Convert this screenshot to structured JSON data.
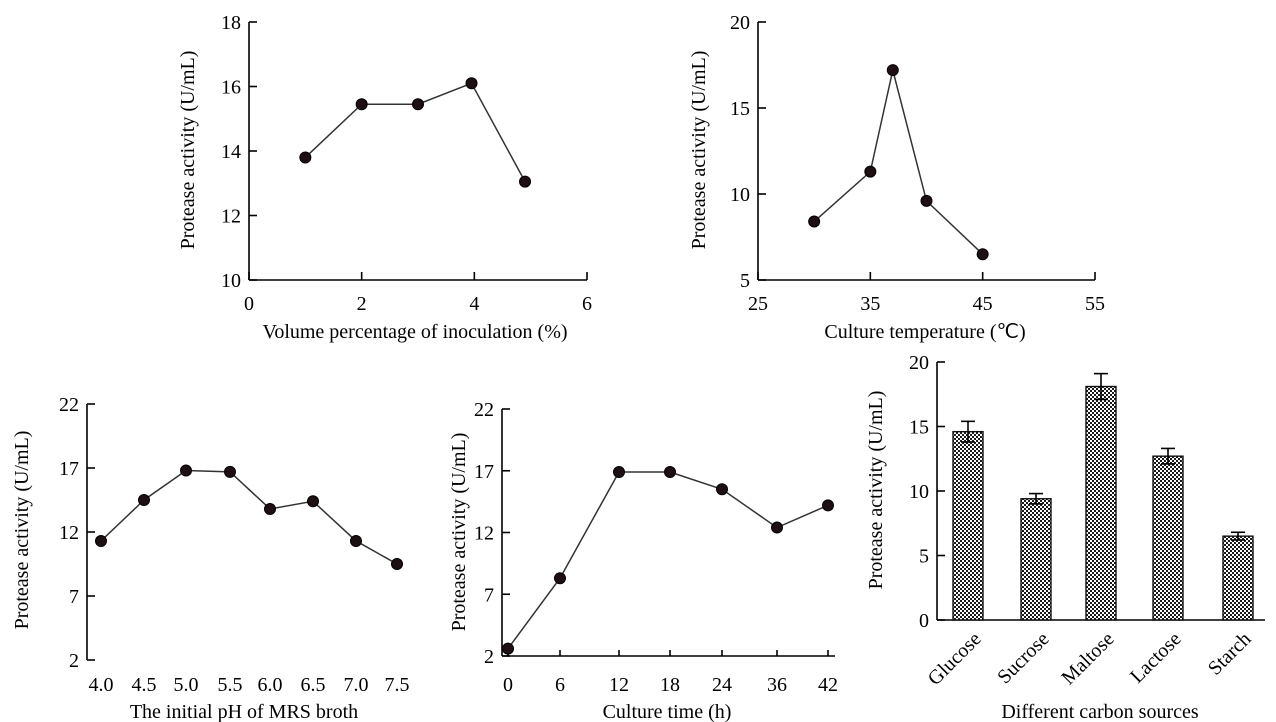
{
  "chart_data": [
    {
      "type": "line",
      "xlabel": "Volume percentage of inoculation (%)",
      "ylabel": "Protease activity (U/mL)",
      "xlim": [
        0,
        6
      ],
      "ylim": [
        10,
        18
      ],
      "xticks": [
        "0",
        "2",
        "4",
        "6"
      ],
      "yticks": [
        "10",
        "12",
        "14",
        "16",
        "18"
      ],
      "series": [
        {
          "x": [
            1,
            2,
            3,
            3.95,
            4.9
          ],
          "y": [
            13.8,
            15.45,
            15.45,
            16.1,
            13.05
          ]
        }
      ]
    },
    {
      "type": "line",
      "xlabel": "Culture temperature (℃)",
      "ylabel": "Protease activity (U/mL)",
      "xlim": [
        25,
        55
      ],
      "ylim": [
        5,
        20
      ],
      "xticks": [
        "25",
        "35",
        "45",
        "55"
      ],
      "yticks": [
        "5",
        "10",
        "15",
        "20"
      ],
      "series": [
        {
          "x": [
            30,
            35,
            37,
            40,
            45
          ],
          "y": [
            8.4,
            11.3,
            17.2,
            9.6,
            6.5
          ]
        }
      ]
    },
    {
      "type": "line",
      "xlabel": "The initial pH of MRS broth",
      "ylabel": "Protease activity (U/mL)",
      "ylim": [
        2,
        22
      ],
      "categories": [
        "4.0",
        "4.5",
        "5.0",
        "5.5",
        "6.0",
        "6.5",
        "7.0",
        "7.5"
      ],
      "yticks": [
        "2",
        "7",
        "12",
        "17",
        "22"
      ],
      "series": [
        {
          "values": [
            11.3,
            14.5,
            16.8,
            16.7,
            13.8,
            14.4,
            11.3,
            9.5
          ]
        }
      ]
    },
    {
      "type": "line",
      "xlabel": "Culture time (h)",
      "ylabel": "Protease activity (U/mL)",
      "ylim": [
        2,
        22
      ],
      "categories": [
        "0",
        "6",
        "12",
        "18",
        "24",
        "36",
        "42"
      ],
      "yticks": [
        "2",
        "7",
        "12",
        "17",
        "22"
      ],
      "series": [
        {
          "values": [
            2.6,
            8.3,
            16.9,
            16.9,
            15.5,
            12.4,
            14.2
          ]
        }
      ]
    },
    {
      "type": "bar",
      "xlabel": "Different carbon sources",
      "ylabel": "Protease activity (U/mL)",
      "ylim": [
        0,
        20
      ],
      "categories": [
        "Glucose",
        "Sucrose",
        "Maltose",
        "Lactose",
        "Starch"
      ],
      "yticks": [
        "0",
        "5",
        "10",
        "15",
        "20"
      ],
      "series": [
        {
          "values": [
            14.6,
            9.4,
            18.1,
            12.7,
            6.5
          ],
          "errors": [
            0.8,
            0.4,
            1.0,
            0.6,
            0.3
          ]
        }
      ]
    }
  ]
}
